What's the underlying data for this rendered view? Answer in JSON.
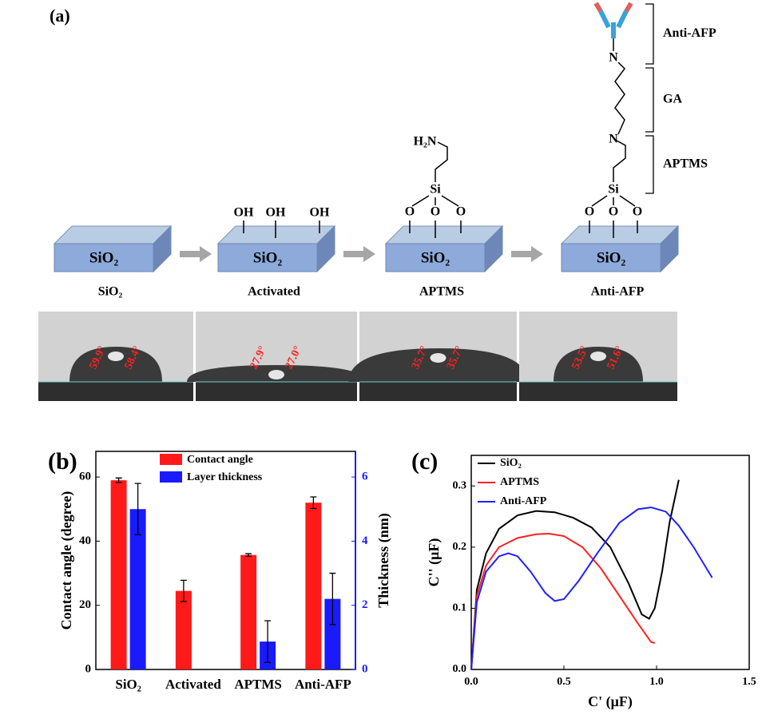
{
  "panel_a": {
    "label": "(a)",
    "stages": [
      {
        "label": "SiO₂",
        "substrate": "SiO₂"
      },
      {
        "label": "Activated",
        "substrate": "SiO₂"
      },
      {
        "label": "APTMS",
        "substrate": "SiO₂"
      },
      {
        "label": "Anti-AFP",
        "substrate": "SiO₂"
      }
    ],
    "hydroxyls": [
      "OH",
      "OH",
      "OH"
    ],
    "aptms": {
      "amine": "H₂N",
      "si": "Si",
      "oxygens": [
        "O",
        "O",
        "O"
      ]
    },
    "anti_afp": {
      "imine_top": "N",
      "imine_bottom": "N",
      "si": "Si",
      "oxygens": [
        "O",
        "O",
        "O"
      ]
    },
    "brackets": [
      "Anti-AFP",
      "GA",
      "APTMS"
    ],
    "angles": [
      [
        "59.9°",
        "58.4°"
      ],
      [
        "27.9°",
        "27.0°"
      ],
      [
        "35.7°",
        "35.7°"
      ],
      [
        "53.5°",
        "51.6°"
      ]
    ]
  },
  "chart_data": [
    {
      "type": "bar",
      "panel_label": "(b)",
      "categories": [
        "SiO₂",
        "Activated",
        "APTMS",
        "Anti-AFP"
      ],
      "ylabel": "Contact angle (degree)",
      "y2label": "Thickness (nm)",
      "ylim": [
        0,
        68
      ],
      "yticks": [
        0,
        20,
        40,
        60
      ],
      "y2lim": [
        0,
        6.8
      ],
      "y2ticks": [
        0,
        2,
        4,
        6
      ],
      "legend": "top",
      "series": [
        {
          "name": "Contact angle",
          "color": "#ff1a1a",
          "values": [
            59,
            24.5,
            35.7,
            52
          ],
          "errors": [
            0.7,
            3.3,
            0.4,
            1.8
          ]
        },
        {
          "name": "Layer thickness",
          "color": "#1a1aff",
          "axis": "y2",
          "values": [
            5.0,
            null,
            0.87,
            2.2
          ],
          "errors": [
            0.8,
            null,
            0.65,
            0.8
          ]
        }
      ]
    },
    {
      "type": "line",
      "panel_label": "(c)",
      "xlabel": "C' (μF)",
      "ylabel": "C'' (μF)",
      "xlim": [
        0,
        1.5
      ],
      "xticks": [
        {
          "value": 0,
          "label": "0.0"
        },
        0.5,
        {
          "value": 1,
          "label": "1.0"
        },
        1.5
      ],
      "ylim": [
        0,
        0.35
      ],
      "yticks": [
        {
          "value": 0,
          "label": "0.0"
        },
        0.1,
        0.2,
        0.3
      ],
      "legend": "upper left",
      "series": [
        {
          "name": "SiO₂",
          "color": "#000000",
          "x": [
            0,
            0.03,
            0.08,
            0.15,
            0.25,
            0.35,
            0.45,
            0.55,
            0.65,
            0.75,
            0.85,
            0.92,
            0.96,
            0.99,
            1.03,
            1.07,
            1.12
          ],
          "values": [
            0,
            0.13,
            0.19,
            0.23,
            0.252,
            0.259,
            0.257,
            0.248,
            0.232,
            0.2,
            0.14,
            0.09,
            0.083,
            0.1,
            0.16,
            0.24,
            0.31
          ]
        },
        {
          "name": "APTMS",
          "color": "#ff2020",
          "x": [
            0,
            0.03,
            0.08,
            0.15,
            0.25,
            0.35,
            0.42,
            0.5,
            0.6,
            0.7,
            0.8,
            0.9,
            0.97,
            0.99
          ],
          "values": [
            0,
            0.12,
            0.17,
            0.2,
            0.215,
            0.221,
            0.222,
            0.218,
            0.2,
            0.165,
            0.12,
            0.075,
            0.045,
            0.043
          ]
        },
        {
          "name": "Anti-AFP",
          "color": "#2020ff",
          "x": [
            0,
            0.03,
            0.08,
            0.15,
            0.2,
            0.25,
            0.32,
            0.4,
            0.45,
            0.5,
            0.58,
            0.68,
            0.8,
            0.9,
            0.97,
            1.05,
            1.12,
            1.2,
            1.3
          ],
          "values": [
            0,
            0.11,
            0.16,
            0.185,
            0.19,
            0.185,
            0.16,
            0.125,
            0.112,
            0.115,
            0.145,
            0.19,
            0.24,
            0.262,
            0.265,
            0.258,
            0.235,
            0.2,
            0.15
          ]
        }
      ]
    }
  ]
}
